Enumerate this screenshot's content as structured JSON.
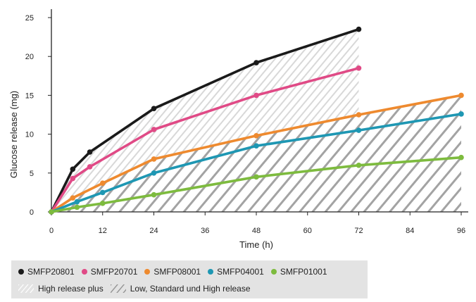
{
  "chart_data": {
    "type": "line",
    "xlabel": "Time (h)",
    "ylabel": "Glucose release (mg)",
    "xlim": [
      0,
      96
    ],
    "ylim": [
      0,
      25
    ],
    "xticks": [
      "0",
      "12",
      "24",
      "36",
      "48",
      "60",
      "72",
      "84",
      "96"
    ],
    "yticks": [
      "0",
      "5",
      "10",
      "15",
      "20",
      "25"
    ],
    "grid": false,
    "legend_position": "bottom",
    "series": [
      {
        "name": "SMFP20801",
        "color": "#1a1a1a",
        "x": [
          0,
          5,
          9,
          24,
          48,
          72
        ],
        "y": [
          0,
          5.5,
          7.7,
          13.3,
          19.2,
          23.5
        ]
      },
      {
        "name": "SMFP20701",
        "color": "#e04a86",
        "x": [
          0,
          5,
          9,
          24,
          48,
          72
        ],
        "y": [
          0,
          4.3,
          5.8,
          10.6,
          15,
          18.5
        ]
      },
      {
        "name": "SMFP08001",
        "color": "#ee8a2f",
        "x": [
          0,
          5,
          12,
          24,
          48,
          72,
          96
        ],
        "y": [
          0,
          1.8,
          3.7,
          6.8,
          9.8,
          12.5,
          15
        ]
      },
      {
        "name": "SMFP04001",
        "color": "#1e97b3",
        "x": [
          0,
          6,
          12,
          24,
          48,
          72,
          96
        ],
        "y": [
          0,
          1.3,
          2.5,
          5,
          8.5,
          10.5,
          12.6
        ]
      },
      {
        "name": "SMFP01001",
        "color": "#7dbb3e",
        "x": [
          0,
          6,
          12,
          24,
          48,
          72,
          96
        ],
        "y": [
          0,
          0.6,
          1.1,
          2.2,
          4.5,
          6,
          7
        ]
      }
    ],
    "regions": [
      {
        "label": "High release plus",
        "upper": "SMFP20801",
        "lower": "SMFP08001",
        "x_end": 72
      },
      {
        "label": "Low, Standard und High release",
        "upper": "SMFP08001",
        "lower": "axis",
        "x_end": 96
      }
    ]
  },
  "legend": {
    "series_labels": [
      "SMFP20801",
      "SMFP20701",
      "SMFP08001",
      "SMFP04001",
      "SMFP01001"
    ],
    "region_labels": [
      "High release plus",
      "Low, Standard und High release"
    ]
  },
  "colors": {
    "hatch_light": "#d6d6d6",
    "hatch_dark": "#9a9a9a",
    "legend_bg": "#e3e3e3"
  }
}
